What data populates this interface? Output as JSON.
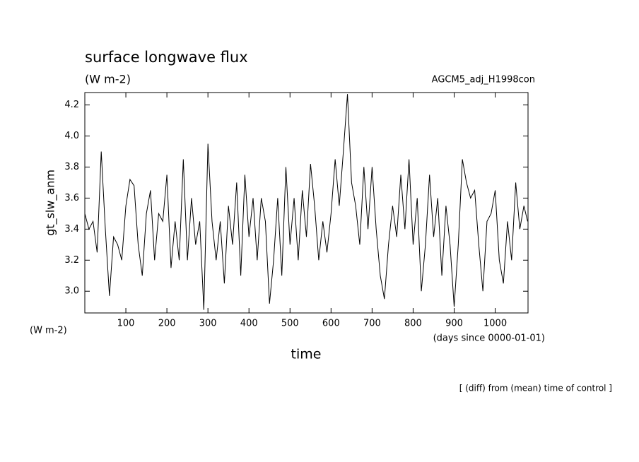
{
  "chart_data": {
    "type": "line",
    "title": "surface longwave flux",
    "subtitle": "(W m-2)",
    "run_label": "AGCM5_adj_H1998con",
    "y_label": "gt_slw_anm",
    "y_units": "(W m-2)",
    "x_label": "time",
    "x_units": "(days since 0000-01-01)",
    "note": "[ (diff) from (mean) time of control ]",
    "xlim": [
      0,
      1080
    ],
    "xticks": [
      100,
      200,
      300,
      400,
      500,
      600,
      700,
      800,
      900,
      1000
    ],
    "ylim": [
      2.86,
      4.28
    ],
    "yticks": [
      {
        "value": 3,
        "label": "3.0"
      },
      3.2,
      3.4,
      3.6,
      3.8,
      {
        "value": 4,
        "label": "4.0"
      },
      4.2
    ],
    "grid": false,
    "series": [
      {
        "name": "gt_slw_anm",
        "color": "#000000",
        "x": [
          0,
          10,
          20,
          30,
          40,
          50,
          60,
          70,
          80,
          90,
          100,
          110,
          120,
          130,
          140,
          150,
          160,
          170,
          180,
          190,
          200,
          210,
          220,
          230,
          240,
          250,
          260,
          270,
          280,
          290,
          300,
          310,
          320,
          330,
          340,
          350,
          360,
          370,
          380,
          390,
          400,
          410,
          420,
          430,
          440,
          450,
          460,
          470,
          480,
          490,
          500,
          510,
          520,
          530,
          540,
          550,
          560,
          570,
          580,
          590,
          600,
          610,
          620,
          630,
          640,
          650,
          660,
          670,
          680,
          690,
          700,
          710,
          720,
          730,
          740,
          750,
          760,
          770,
          780,
          790,
          800,
          810,
          820,
          830,
          840,
          850,
          860,
          870,
          880,
          890,
          900,
          910,
          920,
          930,
          940,
          950,
          960,
          970,
          980,
          990,
          1000,
          1010,
          1020,
          1030,
          1040,
          1050,
          1060,
          1070,
          1079
        ],
        "values": [
          3.5,
          3.4,
          3.45,
          3.25,
          3.9,
          3.4,
          2.97,
          3.35,
          3.3,
          3.2,
          3.55,
          3.72,
          3.68,
          3.3,
          3.1,
          3.5,
          3.65,
          3.2,
          3.5,
          3.45,
          3.75,
          3.15,
          3.45,
          3.2,
          3.85,
          3.2,
          3.6,
          3.3,
          3.45,
          2.88,
          3.95,
          3.45,
          3.2,
          3.45,
          3.05,
          3.55,
          3.3,
          3.7,
          3.1,
          3.75,
          3.35,
          3.6,
          3.2,
          3.6,
          3.45,
          2.92,
          3.2,
          3.6,
          3.1,
          3.8,
          3.3,
          3.6,
          3.2,
          3.65,
          3.35,
          3.82,
          3.55,
          3.2,
          3.45,
          3.25,
          3.5,
          3.85,
          3.55,
          3.9,
          4.27,
          3.7,
          3.55,
          3.3,
          3.8,
          3.4,
          3.8,
          3.4,
          3.1,
          2.95,
          3.3,
          3.55,
          3.35,
          3.75,
          3.4,
          3.85,
          3.3,
          3.6,
          3.0,
          3.3,
          3.75,
          3.35,
          3.6,
          3.1,
          3.55,
          3.3,
          2.9,
          3.3,
          3.85,
          3.7,
          3.6,
          3.65,
          3.3,
          3.0,
          3.45,
          3.5,
          3.65,
          3.2,
          3.05,
          3.45,
          3.2,
          3.7,
          3.4,
          3.55,
          3.45
        ]
      }
    ]
  }
}
